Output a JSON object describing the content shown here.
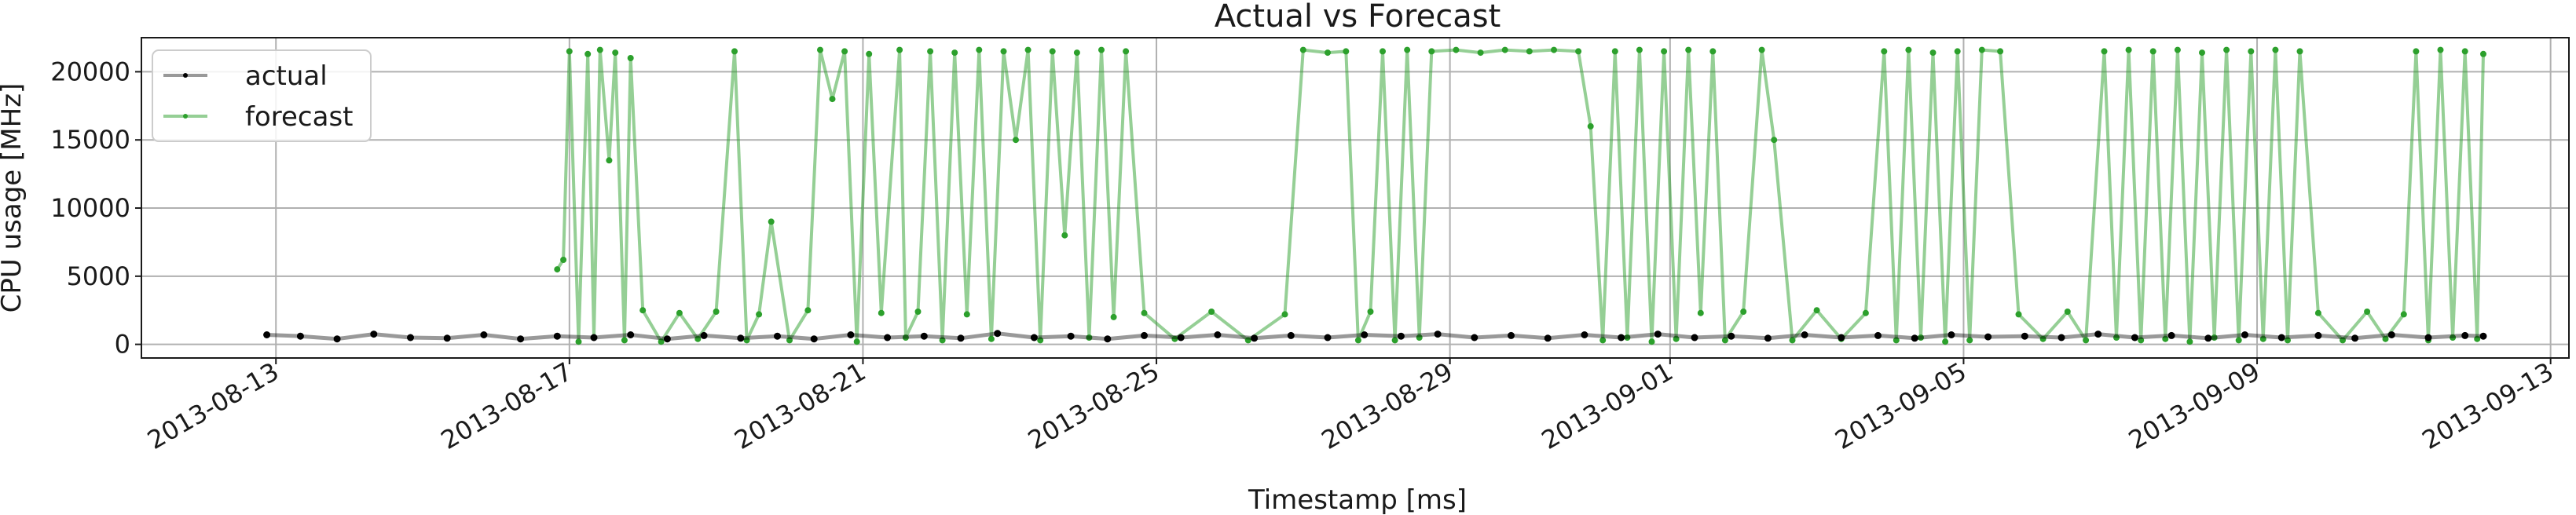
{
  "chart_data": {
    "type": "line",
    "title": "Actual vs Forecast",
    "xlabel": "Timestamp [ms]",
    "ylabel": "CPU usage [MHz]",
    "x_range": [
      "2013-08-11T04:00:00",
      "2013-09-13T06:00:00"
    ],
    "ylim": [
      -1000,
      22500
    ],
    "x_ticks": [
      "2013-08-13",
      "2013-08-17",
      "2013-08-21",
      "2013-08-25",
      "2013-08-29",
      "2013-09-01",
      "2013-09-05",
      "2013-09-09",
      "2013-09-13"
    ],
    "y_ticks": [
      0,
      5000,
      10000,
      15000,
      20000
    ],
    "y_tick_labels": [
      "0",
      "5000",
      "10000",
      "15000",
      "20000"
    ],
    "grid": true,
    "legend_position": "top-left",
    "colors": {
      "actual": "#000000",
      "forecast": "#2ca02c"
    },
    "series": [
      {
        "name": "actual",
        "color": "#000000",
        "points": [
          [
            "2013-08-12T21:00",
            700
          ],
          [
            "2013-08-13T08:00",
            600
          ],
          [
            "2013-08-13T20:00",
            400
          ],
          [
            "2013-08-14T08:00",
            750
          ],
          [
            "2013-08-14T20:00",
            500
          ],
          [
            "2013-08-15T08:00",
            450
          ],
          [
            "2013-08-15T20:00",
            700
          ],
          [
            "2013-08-16T08:00",
            400
          ],
          [
            "2013-08-16T20:00",
            600
          ],
          [
            "2013-08-17T08:00",
            500
          ],
          [
            "2013-08-17T20:00",
            700
          ],
          [
            "2013-08-18T08:00",
            400
          ],
          [
            "2013-08-18T20:00",
            650
          ],
          [
            "2013-08-19T08:00",
            450
          ],
          [
            "2013-08-19T20:00",
            600
          ],
          [
            "2013-08-20T08:00",
            400
          ],
          [
            "2013-08-20T20:00",
            700
          ],
          [
            "2013-08-21T08:00",
            500
          ],
          [
            "2013-08-21T20:00",
            600
          ],
          [
            "2013-08-22T08:00",
            450
          ],
          [
            "2013-08-22T20:00",
            800
          ],
          [
            "2013-08-23T08:00",
            500
          ],
          [
            "2013-08-23T20:00",
            600
          ],
          [
            "2013-08-24T08:00",
            400
          ],
          [
            "2013-08-24T20:00",
            650
          ],
          [
            "2013-08-25T08:00",
            500
          ],
          [
            "2013-08-25T20:00",
            700
          ],
          [
            "2013-08-26T08:00",
            450
          ],
          [
            "2013-08-26T20:00",
            650
          ],
          [
            "2013-08-27T08:00",
            500
          ],
          [
            "2013-08-27T20:00",
            700
          ],
          [
            "2013-08-28T08:00",
            600
          ],
          [
            "2013-08-28T20:00",
            750
          ],
          [
            "2013-08-29T08:00",
            500
          ],
          [
            "2013-08-29T20:00",
            650
          ],
          [
            "2013-08-30T08:00",
            450
          ],
          [
            "2013-08-30T20:00",
            700
          ],
          [
            "2013-08-31T08:00",
            500
          ],
          [
            "2013-08-31T20:00",
            750
          ],
          [
            "2013-09-01T08:00",
            500
          ],
          [
            "2013-09-01T20:00",
            600
          ],
          [
            "2013-09-02T08:00",
            450
          ],
          [
            "2013-09-02T20:00",
            700
          ],
          [
            "2013-09-03T08:00",
            500
          ],
          [
            "2013-09-03T20:00",
            650
          ],
          [
            "2013-09-04T08:00",
            450
          ],
          [
            "2013-09-04T20:00",
            700
          ],
          [
            "2013-09-05T08:00",
            550
          ],
          [
            "2013-09-05T20:00",
            600
          ],
          [
            "2013-09-06T08:00",
            500
          ],
          [
            "2013-09-06T20:00",
            750
          ],
          [
            "2013-09-07T08:00",
            500
          ],
          [
            "2013-09-07T20:00",
            650
          ],
          [
            "2013-09-08T08:00",
            450
          ],
          [
            "2013-09-08T20:00",
            700
          ],
          [
            "2013-09-09T08:00",
            500
          ],
          [
            "2013-09-09T20:00",
            650
          ],
          [
            "2013-09-10T08:00",
            450
          ],
          [
            "2013-09-10T20:00",
            700
          ],
          [
            "2013-09-11T08:00",
            500
          ],
          [
            "2013-09-11T20:00",
            650
          ],
          [
            "2013-09-12T02:00",
            600
          ]
        ]
      },
      {
        "name": "forecast",
        "color": "#2ca02c",
        "points": [
          [
            "2013-08-16T20:00",
            5500
          ],
          [
            "2013-08-16T22:00",
            6200
          ],
          [
            "2013-08-17T00:00",
            21500
          ],
          [
            "2013-08-17T03:00",
            200
          ],
          [
            "2013-08-17T06:00",
            21300
          ],
          [
            "2013-08-17T08:00",
            500
          ],
          [
            "2013-08-17T10:00",
            21600
          ],
          [
            "2013-08-17T13:00",
            13500
          ],
          [
            "2013-08-17T15:00",
            21400
          ],
          [
            "2013-08-17T18:00",
            300
          ],
          [
            "2013-08-17T20:00",
            21000
          ],
          [
            "2013-08-18T00:00",
            2500
          ],
          [
            "2013-08-18T06:00",
            200
          ],
          [
            "2013-08-18T12:00",
            2300
          ],
          [
            "2013-08-18T18:00",
            400
          ],
          [
            "2013-08-19T00:00",
            2400
          ],
          [
            "2013-08-19T06:00",
            21500
          ],
          [
            "2013-08-19T10:00",
            300
          ],
          [
            "2013-08-19T14:00",
            2200
          ],
          [
            "2013-08-19T18:00",
            9000
          ],
          [
            "2013-08-20T00:00",
            300
          ],
          [
            "2013-08-20T06:00",
            2500
          ],
          [
            "2013-08-20T10:00",
            21600
          ],
          [
            "2013-08-20T14:00",
            18000
          ],
          [
            "2013-08-20T18:00",
            21500
          ],
          [
            "2013-08-20T22:00",
            200
          ],
          [
            "2013-08-21T02:00",
            21300
          ],
          [
            "2013-08-21T06:00",
            2300
          ],
          [
            "2013-08-21T12:00",
            21600
          ],
          [
            "2013-08-21T14:00",
            500
          ],
          [
            "2013-08-21T18:00",
            2400
          ],
          [
            "2013-08-21T22:00",
            21500
          ],
          [
            "2013-08-22T02:00",
            300
          ],
          [
            "2013-08-22T06:00",
            21400
          ],
          [
            "2013-08-22T10:00",
            2200
          ],
          [
            "2013-08-22T14:00",
            21600
          ],
          [
            "2013-08-22T18:00",
            400
          ],
          [
            "2013-08-22T22:00",
            21500
          ],
          [
            "2013-08-23T02:00",
            15000
          ],
          [
            "2013-08-23T06:00",
            21600
          ],
          [
            "2013-08-23T10:00",
            300
          ],
          [
            "2013-08-23T14:00",
            21500
          ],
          [
            "2013-08-23T18:00",
            8000
          ],
          [
            "2013-08-23T22:00",
            21400
          ],
          [
            "2013-08-24T02:00",
            500
          ],
          [
            "2013-08-24T06:00",
            21600
          ],
          [
            "2013-08-24T10:00",
            2000
          ],
          [
            "2013-08-24T14:00",
            21500
          ],
          [
            "2013-08-24T20:00",
            2300
          ],
          [
            "2013-08-25T06:00",
            400
          ],
          [
            "2013-08-25T18:00",
            2400
          ],
          [
            "2013-08-26T06:00",
            300
          ],
          [
            "2013-08-26T18:00",
            2200
          ],
          [
            "2013-08-27T00:00",
            21600
          ],
          [
            "2013-08-27T08:00",
            21400
          ],
          [
            "2013-08-27T14:00",
            21500
          ],
          [
            "2013-08-27T18:00",
            300
          ],
          [
            "2013-08-27T22:00",
            2400
          ],
          [
            "2013-08-28T02:00",
            21500
          ],
          [
            "2013-08-28T06:00",
            300
          ],
          [
            "2013-08-28T10:00",
            21600
          ],
          [
            "2013-08-28T14:00",
            500
          ],
          [
            "2013-08-28T18:00",
            21500
          ],
          [
            "2013-08-29T02:00",
            21600
          ],
          [
            "2013-08-29T10:00",
            21400
          ],
          [
            "2013-08-29T18:00",
            21600
          ],
          [
            "2013-08-30T02:00",
            21500
          ],
          [
            "2013-08-30T10:00",
            21600
          ],
          [
            "2013-08-30T18:00",
            21500
          ],
          [
            "2013-08-30T22:00",
            16000
          ],
          [
            "2013-08-31T02:00",
            300
          ],
          [
            "2013-08-31T06:00",
            21500
          ],
          [
            "2013-08-31T10:00",
            500
          ],
          [
            "2013-08-31T14:00",
            21600
          ],
          [
            "2013-08-31T18:00",
            200
          ],
          [
            "2013-08-31T22:00",
            21500
          ],
          [
            "2013-09-01T02:00",
            400
          ],
          [
            "2013-09-01T06:00",
            21600
          ],
          [
            "2013-09-01T10:00",
            2300
          ],
          [
            "2013-09-01T14:00",
            21500
          ],
          [
            "2013-09-01T18:00",
            300
          ],
          [
            "2013-09-02T00:00",
            2400
          ],
          [
            "2013-09-02T06:00",
            21600
          ],
          [
            "2013-09-02T10:00",
            15000
          ],
          [
            "2013-09-02T16:00",
            300
          ],
          [
            "2013-09-03T00:00",
            2500
          ],
          [
            "2013-09-03T08:00",
            400
          ],
          [
            "2013-09-03T16:00",
            2300
          ],
          [
            "2013-09-03T22:00",
            21500
          ],
          [
            "2013-09-04T02:00",
            300
          ],
          [
            "2013-09-04T06:00",
            21600
          ],
          [
            "2013-09-04T10:00",
            500
          ],
          [
            "2013-09-04T14:00",
            21400
          ],
          [
            "2013-09-04T18:00",
            200
          ],
          [
            "2013-09-04T22:00",
            21500
          ],
          [
            "2013-09-05T02:00",
            300
          ],
          [
            "2013-09-05T06:00",
            21600
          ],
          [
            "2013-09-05T12:00",
            21500
          ],
          [
            "2013-09-05T18:00",
            2200
          ],
          [
            "2013-09-06T02:00",
            400
          ],
          [
            "2013-09-06T10:00",
            2400
          ],
          [
            "2013-09-06T16:00",
            300
          ],
          [
            "2013-09-06T22:00",
            21500
          ],
          [
            "2013-09-07T02:00",
            500
          ],
          [
            "2013-09-07T06:00",
            21600
          ],
          [
            "2013-09-07T10:00",
            300
          ],
          [
            "2013-09-07T14:00",
            21500
          ],
          [
            "2013-09-07T18:00",
            400
          ],
          [
            "2013-09-07T22:00",
            21600
          ],
          [
            "2013-09-08T02:00",
            200
          ],
          [
            "2013-09-08T06:00",
            21400
          ],
          [
            "2013-09-08T10:00",
            500
          ],
          [
            "2013-09-08T14:00",
            21600
          ],
          [
            "2013-09-08T18:00",
            300
          ],
          [
            "2013-09-08T22:00",
            21500
          ],
          [
            "2013-09-09T02:00",
            400
          ],
          [
            "2013-09-09T06:00",
            21600
          ],
          [
            "2013-09-09T10:00",
            300
          ],
          [
            "2013-09-09T14:00",
            21500
          ],
          [
            "2013-09-09T20:00",
            2300
          ],
          [
            "2013-09-10T04:00",
            300
          ],
          [
            "2013-09-10T12:00",
            2400
          ],
          [
            "2013-09-10T18:00",
            400
          ],
          [
            "2013-09-11T00:00",
            2200
          ],
          [
            "2013-09-11T04:00",
            21500
          ],
          [
            "2013-09-11T08:00",
            300
          ],
          [
            "2013-09-11T12:00",
            21600
          ],
          [
            "2013-09-11T16:00",
            500
          ],
          [
            "2013-09-11T20:00",
            21500
          ],
          [
            "2013-09-12T00:00",
            400
          ],
          [
            "2013-09-12T02:00",
            21300
          ]
        ]
      }
    ]
  }
}
